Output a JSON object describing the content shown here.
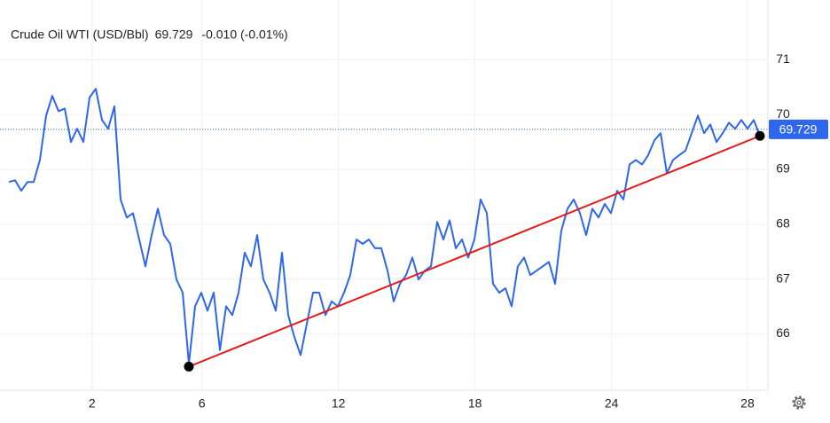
{
  "chart_data": {
    "type": "line",
    "series": [
      {
        "name": "Crude Oil WTI (USD/Bbl)",
        "color": "#2f66ee",
        "values": [
          68.77,
          68.8,
          68.61,
          68.77,
          68.77,
          69.17,
          69.98,
          70.34,
          70.06,
          70.11,
          69.5,
          69.74,
          69.5,
          70.31,
          70.47,
          69.9,
          69.74,
          70.15,
          68.45,
          68.12,
          68.2,
          67.72,
          67.23,
          67.8,
          68.28,
          67.8,
          67.64,
          66.99,
          66.75,
          65.45,
          66.5,
          66.75,
          66.42,
          66.75,
          65.7,
          66.5,
          66.34,
          66.75,
          67.48,
          67.23,
          67.8,
          66.99,
          66.75,
          66.42,
          67.48,
          66.34,
          65.94,
          65.61,
          66.18,
          66.75,
          66.75,
          66.34,
          66.59,
          66.5,
          66.75,
          67.07,
          67.72,
          67.64,
          67.72,
          67.56,
          67.56,
          67.15,
          66.59,
          66.91,
          67.07,
          67.39,
          66.99,
          67.15,
          67.23,
          68.04,
          67.72,
          68.07,
          67.56,
          67.72,
          67.39,
          67.72,
          68.45,
          68.2,
          66.91,
          66.75,
          66.83,
          66.5,
          67.23,
          67.39,
          67.07,
          67.15,
          67.23,
          67.31,
          66.91,
          67.88,
          68.28,
          68.45,
          68.2,
          67.8,
          68.28,
          68.12,
          68.37,
          68.2,
          68.61,
          68.45,
          69.09,
          69.17,
          69.09,
          69.26,
          69.53,
          69.66,
          68.93,
          69.17,
          69.26,
          69.34,
          69.66,
          69.98,
          69.66,
          69.82,
          69.5,
          69.66,
          69.85,
          69.74,
          69.9,
          69.74,
          69.9,
          69.61
        ]
      }
    ],
    "last_price": 69.729,
    "change": "-0.010 (-0.01%)",
    "change_color": "#e8413c",
    "xlim": [
      -1.43,
      122.29
    ],
    "xticks": [
      {
        "value": 13.4,
        "label": "2"
      },
      {
        "value": 31.1,
        "label": "6"
      },
      {
        "value": 53.1,
        "label": "12"
      },
      {
        "value": 75.1,
        "label": "18"
      },
      {
        "value": 97.1,
        "label": "24"
      },
      {
        "value": 119.0,
        "label": "28"
      }
    ],
    "ylim": [
      64.97,
      72.09
    ],
    "yticks": [
      66,
      67,
      68,
      69,
      70,
      71
    ],
    "grid": true,
    "annotations": [
      {
        "type": "trendline",
        "x": [
          29,
          121
        ],
        "y": [
          65.4,
          69.61
        ],
        "color": "#e31b1b"
      }
    ]
  }
}
